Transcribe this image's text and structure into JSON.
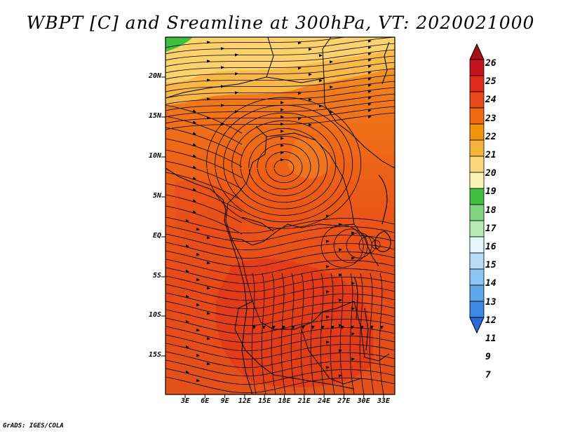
{
  "title": "WBPT [C] and Sreamline at 300hPa, VT: 2020021000",
  "credit": "GrADS: IGES/COLA",
  "map": {
    "latitude_labels": [
      "20N",
      "15N",
      "10N",
      "5N",
      "EQ",
      "5S",
      "10S",
      "15S"
    ],
    "longitude_labels": [
      "3E",
      "6E",
      "9E",
      "12E",
      "15E",
      "18E",
      "21E",
      "24E",
      "27E",
      "30E",
      "33E"
    ],
    "field": "WBPT",
    "units": "C",
    "level": "300hPa",
    "valid_time": "2020021000",
    "overlay": "Sreamline"
  },
  "colorbar": {
    "labels": [
      "26",
      "25",
      "24",
      "23",
      "22",
      "21",
      "20",
      "19",
      "18",
      "17",
      "16",
      "15",
      "14",
      "13",
      "12",
      "11",
      "9",
      "7"
    ],
    "colors": [
      "#a50f15",
      "#c8141e",
      "#e02a1a",
      "#e8481a",
      "#ee6a12",
      "#f3920c",
      "#f7b23a",
      "#fcd878",
      "#fbf3b4",
      "#3fbf3f",
      "#7ed67e",
      "#b6eab0",
      "#e6f6ff",
      "#b8dcf8",
      "#8cc4f2",
      "#5ea6ea",
      "#3c88e2",
      "#2a6bd8"
    ]
  }
}
